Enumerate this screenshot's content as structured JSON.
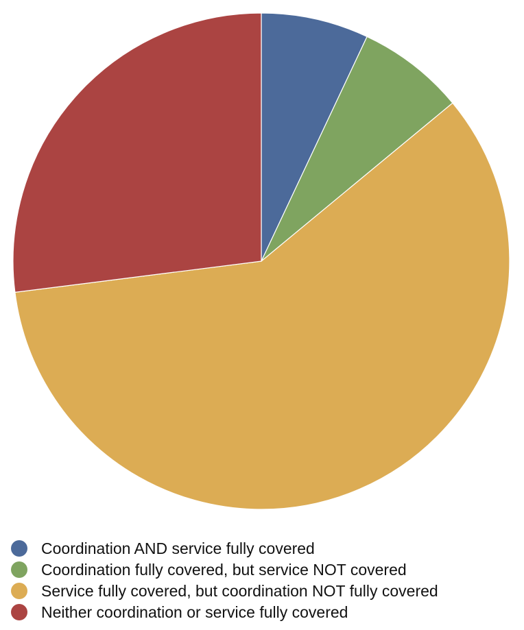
{
  "chart_data": {
    "type": "pie",
    "title": "",
    "start_angle": "top",
    "direction": "clockwise",
    "legend_position": "bottom-left",
    "slices": [
      {
        "label": "Coordination AND service fully covered",
        "value": 7,
        "color": "#4c6a9a"
      },
      {
        "label": "Coordination fully covered, but service NOT covered",
        "value": 7,
        "color": "#7fa460"
      },
      {
        "label": "Service fully covered, but coordination NOT fully covered",
        "value": 59,
        "color": "#dcac54"
      },
      {
        "label": "Neither coordination or service fully covered",
        "value": 27,
        "color": "#ab4442"
      }
    ]
  }
}
